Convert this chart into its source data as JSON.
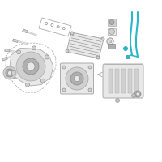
{
  "bg_color": "#ffffff",
  "line_color": "#aaaaaa",
  "dark_line": "#888888",
  "highlight_color": "#2ab8c8",
  "highlight_color2": "#1a9fb5",
  "small_dot": "#999999",
  "border_color": "#dddddd",
  "fill_light": "#e8e8e8",
  "fill_mid": "#d0d0d0",
  "fill_dark": "#b0b0b0"
}
